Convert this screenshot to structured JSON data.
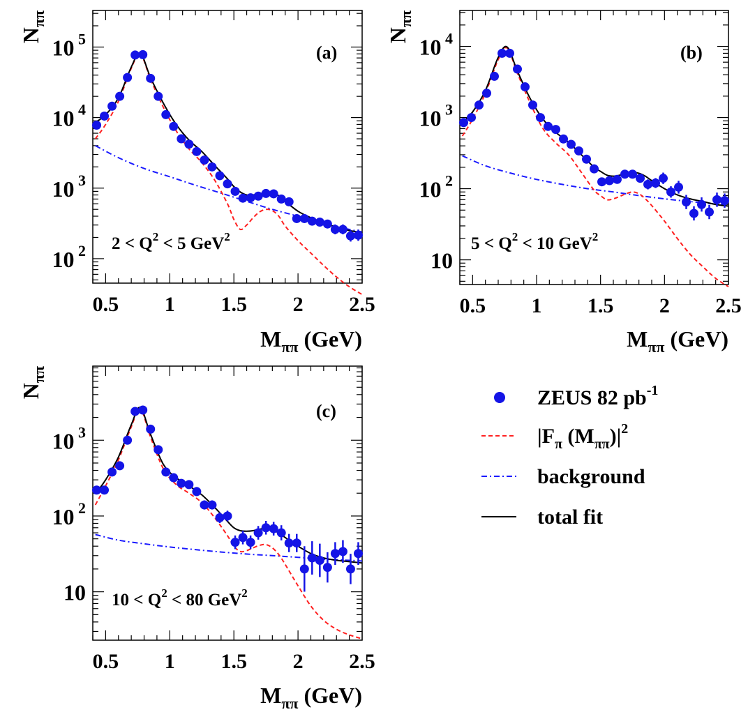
{
  "chart_data": [
    {
      "id": "a",
      "type": "scatter",
      "panel_label": "(a)",
      "region_label": {
        "pre": "2 < Q",
        "sup1": "2",
        "mid": " < 5 GeV",
        "sup2": "2"
      },
      "xlabel": {
        "main": "M",
        "sub": "ππ",
        "unit": " (GeV)"
      },
      "ylabel": {
        "main": "N",
        "sub": "ππ"
      },
      "xlim": [
        0.4,
        2.5
      ],
      "ylog": true,
      "ylim": [
        45,
        330000
      ],
      "xticks": [
        "0.5",
        "1",
        "1.5",
        "2",
        "2.5"
      ],
      "yticks": [
        {
          "value": 100,
          "base": "10",
          "exp": "2"
        },
        {
          "value": 1000,
          "base": "10",
          "exp": "3"
        },
        {
          "value": 10000,
          "base": "10",
          "exp": "4"
        },
        {
          "value": 100000,
          "base": "10",
          "exp": "5"
        }
      ],
      "series": [
        {
          "name": "ZEUS 82 pb-1",
          "kind": "points",
          "x": [
            0.43,
            0.49,
            0.55,
            0.61,
            0.67,
            0.73,
            0.79,
            0.85,
            0.91,
            0.97,
            1.03,
            1.09,
            1.15,
            1.21,
            1.27,
            1.33,
            1.39,
            1.45,
            1.51,
            1.57,
            1.63,
            1.69,
            1.75,
            1.81,
            1.87,
            1.93,
            1.99,
            2.05,
            2.11,
            2.17,
            2.23,
            2.29,
            2.35,
            2.41,
            2.47
          ],
          "y": [
            7800,
            10500,
            14500,
            20000,
            37000,
            77000,
            78000,
            36000,
            20000,
            11000,
            7500,
            5000,
            4200,
            3300,
            2500,
            2000,
            1500,
            1150,
            900,
            720,
            730,
            770,
            840,
            830,
            700,
            640,
            370,
            370,
            340,
            330,
            310,
            260,
            260,
            210,
            215
          ],
          "err": [
            0.03,
            0.03,
            0.03,
            0.03,
            0.03,
            0.03,
            0.03,
            0.03,
            0.03,
            0.03,
            0.03,
            0.03,
            0.03,
            0.04,
            0.04,
            0.04,
            0.04,
            0.04,
            0.04,
            0.05,
            0.05,
            0.05,
            0.05,
            0.05,
            0.05,
            0.06,
            0.06,
            0.06,
            0.06,
            0.06,
            0.06,
            0.07,
            0.07,
            0.08,
            0.08
          ]
        },
        {
          "name": "|Fπ (Mππ)|2",
          "kind": "dashed",
          "x": [
            0.42,
            0.5,
            0.6,
            0.7,
            0.77,
            0.85,
            0.95,
            1.05,
            1.15,
            1.25,
            1.35,
            1.45,
            1.5,
            1.55,
            1.6,
            1.65,
            1.7,
            1.75,
            1.8,
            1.85,
            1.9,
            2.0,
            2.1,
            2.2,
            2.3,
            2.4,
            2.5
          ],
          "y": [
            5000,
            8000,
            17000,
            50000,
            80000,
            35000,
            14000,
            6500,
            3600,
            2300,
            1300,
            600,
            360,
            260,
            300,
            380,
            460,
            500,
            480,
            400,
            290,
            180,
            120,
            80,
            55,
            40,
            31
          ]
        },
        {
          "name": "background",
          "kind": "dashdot",
          "x": [
            0.42,
            0.6,
            0.8,
            1.0,
            1.2,
            1.4,
            1.6,
            1.8,
            2.0,
            2.2,
            2.4,
            2.5
          ],
          "y": [
            4000,
            2700,
            1900,
            1450,
            1100,
            850,
            650,
            500,
            400,
            320,
            260,
            240
          ]
        },
        {
          "name": "total fit",
          "kind": "solid",
          "x": [
            0.42,
            0.5,
            0.6,
            0.7,
            0.77,
            0.85,
            0.95,
            1.05,
            1.15,
            1.25,
            1.35,
            1.45,
            1.5,
            1.55,
            1.6,
            1.65,
            1.7,
            1.75,
            1.8,
            1.85,
            1.9,
            2.0,
            2.1,
            2.2,
            2.3,
            2.4,
            2.5
          ],
          "y": [
            8500,
            11000,
            19000,
            52000,
            82000,
            37000,
            16000,
            8000,
            4800,
            3300,
            2100,
            1350,
            1050,
            880,
            800,
            800,
            830,
            870,
            860,
            780,
            650,
            470,
            380,
            320,
            280,
            250,
            235
          ]
        }
      ]
    },
    {
      "id": "b",
      "type": "scatter",
      "panel_label": "(b)",
      "region_label": {
        "pre": "5 < Q",
        "sup1": "2",
        "mid": " < 10 GeV",
        "sup2": "2"
      },
      "xlabel": {
        "main": "M",
        "sub": "ππ",
        "unit": " (GeV)"
      },
      "ylabel": {
        "main": "N",
        "sub": "ππ"
      },
      "xlim": [
        0.4,
        2.5
      ],
      "ylog": true,
      "ylim": [
        4.5,
        32000
      ],
      "xticks": [
        "0.5",
        "1",
        "1.5",
        "2",
        "2.5"
      ],
      "yticks": [
        {
          "value": 10,
          "base": "10",
          "exp": ""
        },
        {
          "value": 100,
          "base": "10",
          "exp": "2"
        },
        {
          "value": 1000,
          "base": "10",
          "exp": "3"
        },
        {
          "value": 10000,
          "base": "10",
          "exp": "4"
        }
      ],
      "series": [
        {
          "name": "ZEUS 82 pb-1",
          "kind": "points",
          "x": [
            0.43,
            0.49,
            0.55,
            0.61,
            0.67,
            0.73,
            0.79,
            0.85,
            0.91,
            0.97,
            1.03,
            1.09,
            1.15,
            1.21,
            1.27,
            1.33,
            1.39,
            1.45,
            1.51,
            1.57,
            1.63,
            1.69,
            1.75,
            1.81,
            1.87,
            1.93,
            1.99,
            2.05,
            2.11,
            2.17,
            2.23,
            2.29,
            2.35,
            2.41,
            2.47
          ],
          "y": [
            850,
            1000,
            1500,
            2200,
            3800,
            8000,
            8000,
            4800,
            2700,
            1500,
            1000,
            750,
            680,
            500,
            420,
            340,
            260,
            190,
            125,
            130,
            135,
            160,
            160,
            140,
            115,
            120,
            140,
            90,
            105,
            65,
            45,
            60,
            47,
            70,
            68
          ],
          "err": [
            0.03,
            0.03,
            0.03,
            0.03,
            0.03,
            0.03,
            0.03,
            0.03,
            0.03,
            0.04,
            0.04,
            0.04,
            0.04,
            0.05,
            0.05,
            0.05,
            0.05,
            0.05,
            0.06,
            0.06,
            0.06,
            0.06,
            0.06,
            0.06,
            0.07,
            0.07,
            0.08,
            0.08,
            0.09,
            0.1,
            0.1,
            0.1,
            0.1,
            0.1,
            0.1
          ]
        },
        {
          "name": "|Fπ (Mππ)|2",
          "kind": "dashed",
          "x": [
            0.42,
            0.5,
            0.6,
            0.7,
            0.77,
            0.85,
            0.95,
            1.05,
            1.15,
            1.25,
            1.35,
            1.45,
            1.5,
            1.55,
            1.6,
            1.65,
            1.7,
            1.75,
            1.8,
            1.85,
            1.9,
            2.0,
            2.1,
            2.2,
            2.3,
            2.4,
            2.5
          ],
          "y": [
            550,
            950,
            2200,
            6500,
            9500,
            4200,
            1600,
            700,
            440,
            300,
            170,
            95,
            80,
            70,
            72,
            78,
            85,
            90,
            85,
            72,
            58,
            35,
            20,
            12,
            8,
            5.5,
            4.2
          ]
        },
        {
          "name": "background",
          "kind": "dashdot",
          "x": [
            0.42,
            0.6,
            0.8,
            1.0,
            1.2,
            1.4,
            1.6,
            1.8,
            2.0,
            2.2,
            2.4,
            2.5
          ],
          "y": [
            290,
            210,
            165,
            135,
            115,
            100,
            90,
            80,
            72,
            66,
            61,
            59
          ]
        },
        {
          "name": "total fit",
          "kind": "solid",
          "x": [
            0.42,
            0.5,
            0.6,
            0.7,
            0.77,
            0.85,
            0.95,
            1.05,
            1.15,
            1.25,
            1.35,
            1.45,
            1.5,
            1.55,
            1.6,
            1.65,
            1.7,
            1.75,
            1.8,
            1.85,
            1.9,
            2.0,
            2.1,
            2.2,
            2.3,
            2.4,
            2.5
          ],
          "y": [
            850,
            1200,
            2400,
            7000,
            9800,
            4500,
            1850,
            950,
            620,
            450,
            300,
            200,
            175,
            155,
            150,
            155,
            165,
            170,
            165,
            150,
            130,
            100,
            82,
            72,
            66,
            60,
            57
          ]
        }
      ]
    },
    {
      "id": "c",
      "type": "scatter",
      "panel_label": "(c)",
      "region_label": {
        "pre": "10 < Q",
        "sup1": "2",
        "mid": " < 80 GeV",
        "sup2": "2"
      },
      "xlabel": {
        "main": "M",
        "sub": "ππ",
        "unit": " (GeV)"
      },
      "ylabel": {
        "main": "N",
        "sub": "ππ"
      },
      "xlim": [
        0.4,
        2.5
      ],
      "ylog": true,
      "ylim": [
        2.3,
        9500
      ],
      "xticks": [
        "0.5",
        "1",
        "1.5",
        "2",
        "2.5"
      ],
      "yticks": [
        {
          "value": 10,
          "base": "10",
          "exp": ""
        },
        {
          "value": 100,
          "base": "10",
          "exp": "2"
        },
        {
          "value": 1000,
          "base": "10",
          "exp": "3"
        }
      ],
      "series": [
        {
          "name": "ZEUS 82 pb-1",
          "kind": "points",
          "x": [
            0.43,
            0.49,
            0.55,
            0.61,
            0.67,
            0.73,
            0.79,
            0.85,
            0.91,
            0.97,
            1.03,
            1.09,
            1.15,
            1.21,
            1.27,
            1.33,
            1.39,
            1.45,
            1.51,
            1.57,
            1.63,
            1.69,
            1.75,
            1.81,
            1.87,
            1.93,
            1.99,
            2.05,
            2.11,
            2.17,
            2.23,
            2.29,
            2.35,
            2.41,
            2.47
          ],
          "y": [
            220,
            220,
            380,
            460,
            1000,
            2400,
            2500,
            1400,
            750,
            380,
            320,
            270,
            260,
            210,
            140,
            140,
            95,
            100,
            45,
            52,
            45,
            60,
            70,
            68,
            60,
            44,
            44,
            20,
            28,
            26,
            21,
            32,
            34,
            20,
            32
          ],
          "err": [
            0.04,
            0.04,
            0.04,
            0.04,
            0.04,
            0.04,
            0.04,
            0.04,
            0.04,
            0.05,
            0.05,
            0.05,
            0.05,
            0.06,
            0.06,
            0.06,
            0.07,
            0.07,
            0.09,
            0.09,
            0.09,
            0.09,
            0.09,
            0.09,
            0.1,
            0.12,
            0.12,
            0.3,
            0.22,
            0.22,
            0.2,
            0.15,
            0.15,
            0.2,
            0.15
          ]
        },
        {
          "name": "|Fπ (Mππ)|2",
          "kind": "dashed",
          "x": [
            0.42,
            0.5,
            0.6,
            0.7,
            0.77,
            0.85,
            0.95,
            1.05,
            1.15,
            1.25,
            1.35,
            1.45,
            1.5,
            1.55,
            1.6,
            1.65,
            1.7,
            1.75,
            1.8,
            1.85,
            1.9,
            2.0,
            2.1,
            2.2,
            2.3,
            2.4,
            2.5
          ],
          "y": [
            140,
            250,
            550,
            1500,
            2600,
            1100,
            420,
            260,
            200,
            150,
            95,
            55,
            40,
            34,
            35,
            38,
            41,
            42,
            38,
            31,
            23,
            12,
            6.5,
            4.2,
            3.2,
            2.7,
            2.4
          ]
        },
        {
          "name": "background",
          "kind": "dashdot",
          "x": [
            0.42,
            0.6,
            0.8,
            1.0,
            1.2,
            1.4,
            1.6,
            1.8,
            2.0,
            2.2,
            2.4,
            2.5
          ],
          "y": [
            57,
            48,
            43,
            39,
            36,
            33.5,
            31.5,
            30,
            28.5,
            27,
            26,
            25.5
          ]
        },
        {
          "name": "total fit",
          "kind": "solid",
          "x": [
            0.42,
            0.5,
            0.6,
            0.7,
            0.77,
            0.85,
            0.95,
            1.05,
            1.15,
            1.25,
            1.35,
            1.45,
            1.5,
            1.55,
            1.6,
            1.65,
            1.7,
            1.75,
            1.8,
            1.85,
            1.9,
            2.0,
            2.1,
            2.2,
            2.3,
            2.4,
            2.5
          ],
          "y": [
            195,
            300,
            600,
            1600,
            2700,
            1200,
            480,
            320,
            250,
            190,
            130,
            85,
            70,
            64,
            63,
            64,
            67,
            68,
            65,
            60,
            52,
            40,
            32,
            28,
            26,
            25,
            24
          ]
        }
      ]
    }
  ],
  "legend": {
    "entries": [
      {
        "kind": "points",
        "text": "ZEUS 82 pb",
        "sup": "-1"
      },
      {
        "kind": "dashed",
        "text": "|F",
        "sub": "π",
        "text2": " (M",
        "sub2": "ππ",
        "text3": ")|",
        "sup": "2"
      },
      {
        "kind": "dashdot",
        "text": "background"
      },
      {
        "kind": "solid",
        "text": "total fit"
      }
    ]
  },
  "colors": {
    "points": "#1414e6",
    "dashed": "#ff2020",
    "dashdot": "#1a1aff",
    "solid": "#000000",
    "axes": "#000000"
  }
}
